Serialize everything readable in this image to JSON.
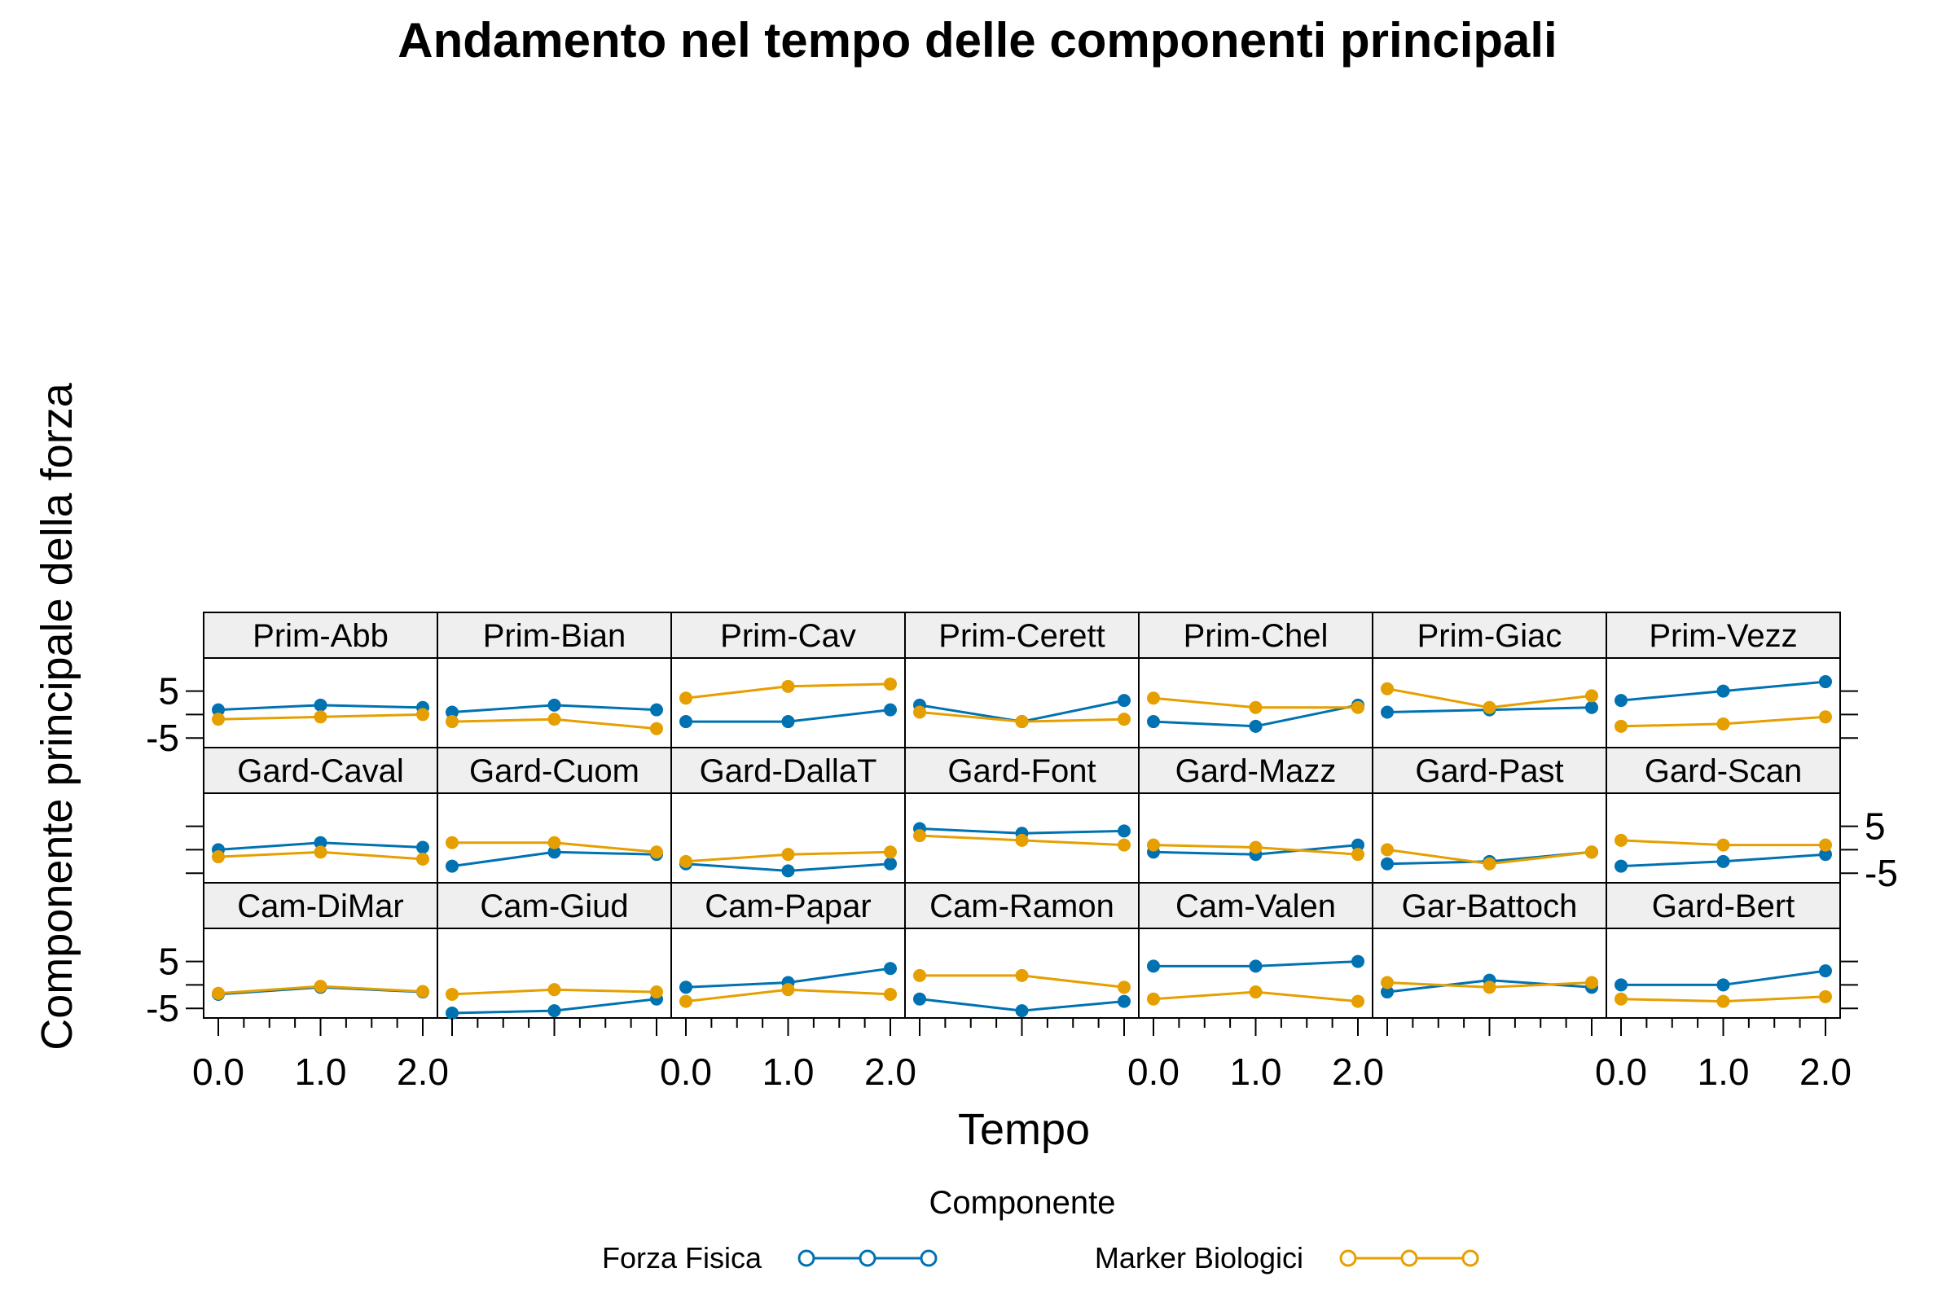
{
  "chart_data": {
    "type": "line",
    "title": "Andamento nel tempo delle componenti principali",
    "xlabel": "Tempo",
    "ylabel": "Componente principale della forza",
    "x": [
      0,
      1,
      2
    ],
    "xlim": [
      0,
      2
    ],
    "ylim": [
      -6,
      11
    ],
    "y_ticks": [
      -5,
      0,
      5
    ],
    "y_tick_labels": [
      "-5",
      "",
      "5"
    ],
    "x_tick_labels": [
      "0.0",
      "1.0",
      "2.0"
    ],
    "legend": {
      "title": "Componente",
      "position": "bottom",
      "entries": [
        "Forza Fisica",
        "Marker Biologici"
      ]
    },
    "colors": {
      "Forza Fisica": "#0072B2",
      "Marker Biologici": "#E69F00"
    },
    "panels": [
      {
        "name": "Cam-DiMar",
        "series": [
          {
            "name": "Forza Fisica",
            "values": [
              -2,
              -0.5,
              -1.5
            ]
          },
          {
            "name": "Marker Biologici",
            "values": [
              -1.8,
              -0.3,
              -1.4
            ]
          }
        ]
      },
      {
        "name": "Cam-Giud",
        "series": [
          {
            "name": "Forza Fisica",
            "values": [
              -6,
              -5.5,
              -3
            ]
          },
          {
            "name": "Marker Biologici",
            "values": [
              -2,
              -1,
              -1.5
            ]
          }
        ]
      },
      {
        "name": "Cam-Papar",
        "series": [
          {
            "name": "Forza Fisica",
            "values": [
              -0.5,
              0.5,
              3.5
            ]
          },
          {
            "name": "Marker Biologici",
            "values": [
              -3.5,
              -1,
              -2
            ]
          }
        ]
      },
      {
        "name": "Cam-Ramon",
        "series": [
          {
            "name": "Forza Fisica",
            "values": [
              -3,
              -5.5,
              -3.5
            ]
          },
          {
            "name": "Marker Biologici",
            "values": [
              2,
              2,
              -0.5
            ]
          }
        ]
      },
      {
        "name": "Cam-Valen",
        "series": [
          {
            "name": "Forza Fisica",
            "values": [
              4,
              4,
              5
            ]
          },
          {
            "name": "Marker Biologici",
            "values": [
              -3,
              -1.5,
              -3.5
            ]
          }
        ]
      },
      {
        "name": "Gar-Battoch",
        "series": [
          {
            "name": "Forza Fisica",
            "values": [
              -1.5,
              1,
              -0.5
            ]
          },
          {
            "name": "Marker Biologici",
            "values": [
              0.5,
              -0.5,
              0.5
            ]
          }
        ]
      },
      {
        "name": "Gard-Bert",
        "series": [
          {
            "name": "Forza Fisica",
            "values": [
              0,
              0,
              3
            ]
          },
          {
            "name": "Marker Biologici",
            "values": [
              -3,
              -3.5,
              -2.5
            ]
          }
        ]
      },
      {
        "name": "Gard-Caval",
        "series": [
          {
            "name": "Forza Fisica",
            "values": [
              0,
              1.5,
              0.5
            ]
          },
          {
            "name": "Marker Biologici",
            "values": [
              -1.5,
              -0.5,
              -2
            ]
          }
        ]
      },
      {
        "name": "Gard-Cuom",
        "series": [
          {
            "name": "Forza Fisica",
            "values": [
              -3.5,
              -0.5,
              -1
            ]
          },
          {
            "name": "Marker Biologici",
            "values": [
              1.5,
              1.5,
              -0.5
            ]
          }
        ]
      },
      {
        "name": "Gard-DallaT",
        "series": [
          {
            "name": "Forza Fisica",
            "values": [
              -3,
              -4.5,
              -3
            ]
          },
          {
            "name": "Marker Biologici",
            "values": [
              -2.5,
              -1,
              -0.5
            ]
          }
        ]
      },
      {
        "name": "Gard-Font",
        "series": [
          {
            "name": "Forza Fisica",
            "values": [
              4.5,
              3.5,
              4
            ]
          },
          {
            "name": "Marker Biologici",
            "values": [
              3,
              2,
              1
            ]
          }
        ]
      },
      {
        "name": "Gard-Mazz",
        "series": [
          {
            "name": "Forza Fisica",
            "values": [
              -0.5,
              -1,
              1
            ]
          },
          {
            "name": "Marker Biologici",
            "values": [
              1,
              0.5,
              -1
            ]
          }
        ]
      },
      {
        "name": "Gard-Past",
        "series": [
          {
            "name": "Forza Fisica",
            "values": [
              -3,
              -2.5,
              -0.5
            ]
          },
          {
            "name": "Marker Biologici",
            "values": [
              0,
              -3,
              -0.5
            ]
          }
        ]
      },
      {
        "name": "Gard-Scan",
        "series": [
          {
            "name": "Forza Fisica",
            "values": [
              -3.5,
              -2.5,
              -1
            ]
          },
          {
            "name": "Marker Biologici",
            "values": [
              2,
              1,
              1
            ]
          }
        ]
      },
      {
        "name": "Prim-Abb",
        "series": [
          {
            "name": "Forza Fisica",
            "values": [
              1,
              2,
              1.5
            ]
          },
          {
            "name": "Marker Biologici",
            "values": [
              -1,
              -0.5,
              0
            ]
          }
        ]
      },
      {
        "name": "Prim-Bian",
        "series": [
          {
            "name": "Forza Fisica",
            "values": [
              0.5,
              2,
              1
            ]
          },
          {
            "name": "Marker Biologici",
            "values": [
              -1.5,
              -1,
              -3
            ]
          }
        ]
      },
      {
        "name": "Prim-Cav",
        "series": [
          {
            "name": "Forza Fisica",
            "values": [
              -1.5,
              -1.5,
              1
            ]
          },
          {
            "name": "Marker Biologici",
            "values": [
              3.5,
              6,
              6.5
            ]
          }
        ]
      },
      {
        "name": "Prim-Cerett",
        "series": [
          {
            "name": "Forza Fisica",
            "values": [
              2,
              -1.5,
              3
            ]
          },
          {
            "name": "Marker Biologici",
            "values": [
              0.5,
              -1.5,
              -1
            ]
          }
        ]
      },
      {
        "name": "Prim-Chel",
        "series": [
          {
            "name": "Forza Fisica",
            "values": [
              -1.5,
              -2.5,
              2
            ]
          },
          {
            "name": "Marker Biologici",
            "values": [
              3.5,
              1.5,
              1.5
            ]
          }
        ]
      },
      {
        "name": "Prim-Giac",
        "series": [
          {
            "name": "Forza Fisica",
            "values": [
              0.5,
              1,
              1.5
            ]
          },
          {
            "name": "Marker Biologici",
            "values": [
              5.5,
              1.5,
              4
            ]
          }
        ]
      },
      {
        "name": "Prim-Vezz",
        "series": [
          {
            "name": "Forza Fisica",
            "values": [
              3,
              5,
              7
            ]
          },
          {
            "name": "Marker Biologici",
            "values": [
              -2.5,
              -2,
              -0.5
            ]
          }
        ]
      }
    ]
  }
}
